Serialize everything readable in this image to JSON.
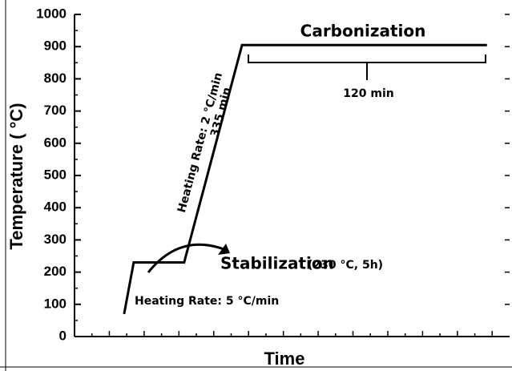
{
  "chart_data": {
    "type": "line",
    "xlabel": "Time",
    "ylabel": "Temperature ( °C)",
    "x": [
      11.4,
      13.6,
      25.2,
      38.5,
      94.8
    ],
    "series": [
      {
        "color": "#000000",
        "values": [
          70,
          230,
          230,
          905,
          905
        ]
      }
    ],
    "xlim": [
      0,
      100
    ],
    "ylim": [
      0,
      1000
    ],
    "yticks": [
      0,
      100,
      200,
      300,
      400,
      500,
      600,
      700,
      800,
      900,
      1000
    ],
    "annotations": [
      "Carbonization",
      "120 min",
      "Heating Rate: 2 °C/min",
      "335 min",
      "Stabilization",
      "(230 °C, 5h)",
      "Heating Rate: 5 °C/min"
    ]
  }
}
